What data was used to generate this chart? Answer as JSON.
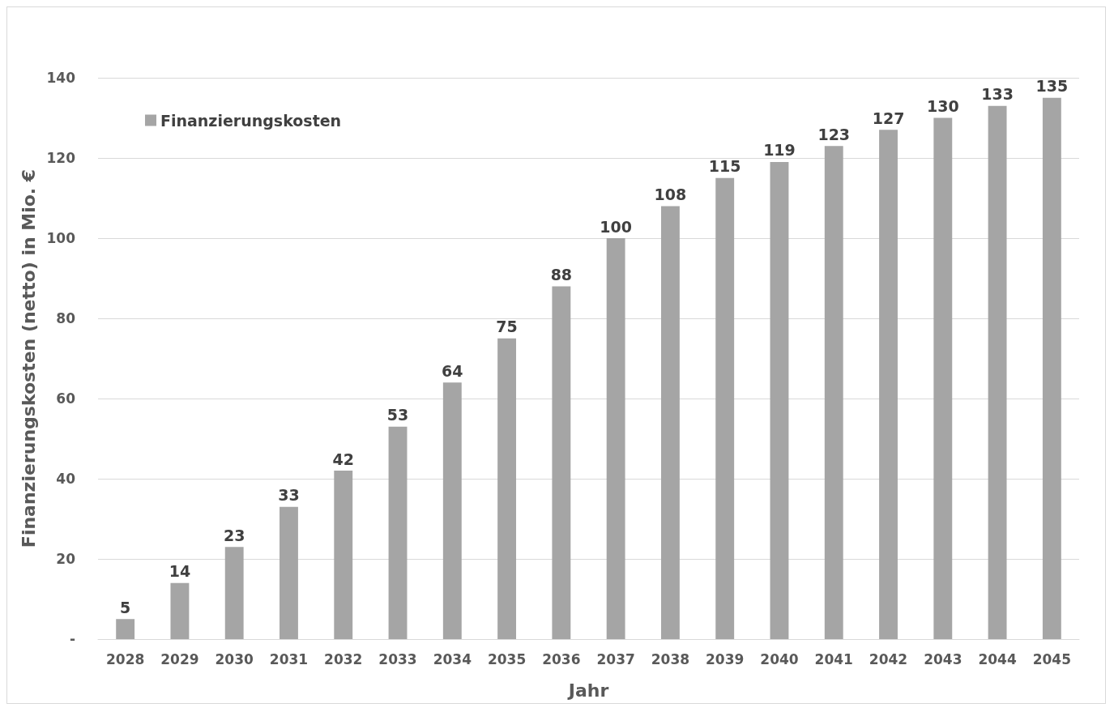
{
  "chart_data": {
    "type": "bar",
    "xlabel": "Jahr",
    "ylabel": "Finanzierungskosten (netto) in Mio. €",
    "categories": [
      "2028",
      "2029",
      "2030",
      "2031",
      "2032",
      "2033",
      "2034",
      "2035",
      "2036",
      "2037",
      "2038",
      "2039",
      "2040",
      "2041",
      "2042",
      "2043",
      "2044",
      "2045"
    ],
    "series": [
      {
        "name": "Finanzierungskosten",
        "color": "#a5a5a5",
        "values": [
          5,
          14,
          23,
          33,
          42,
          53,
          64,
          75,
          88,
          100,
          108,
          115,
          119,
          123,
          127,
          130,
          133,
          135
        ]
      }
    ],
    "ylim": [
      0,
      140
    ],
    "yticks": [
      {
        "value": 0,
        "label": "-"
      },
      20,
      40,
      60,
      80,
      100,
      120,
      140
    ],
    "grid": "y",
    "legend": "top left",
    "data_labels": true
  }
}
